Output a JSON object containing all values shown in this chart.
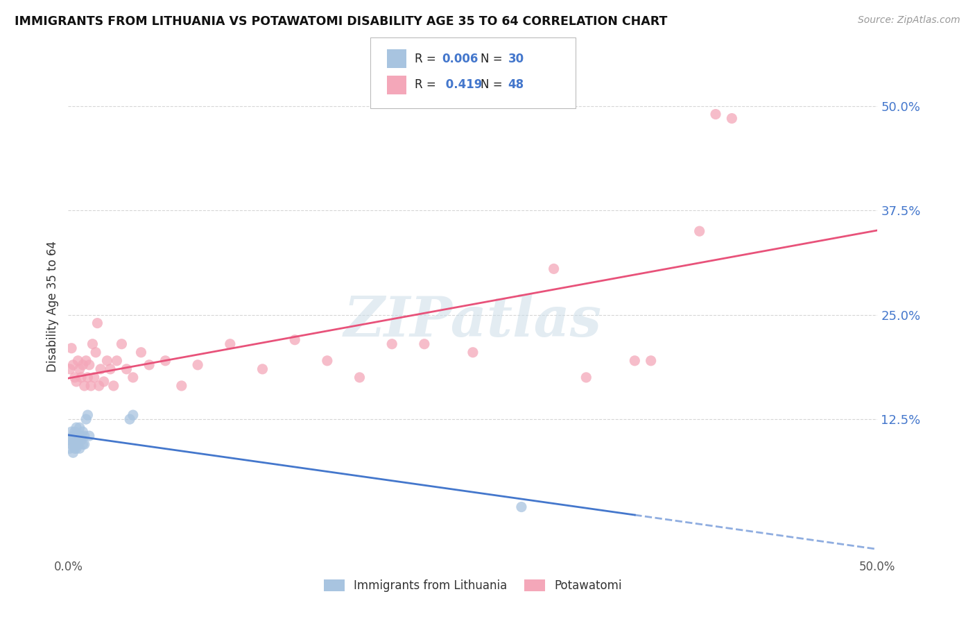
{
  "title": "IMMIGRANTS FROM LITHUANIA VS POTAWATOMI DISABILITY AGE 35 TO 64 CORRELATION CHART",
  "source": "Source: ZipAtlas.com",
  "ylabel": "Disability Age 35 to 64",
  "xlim": [
    0.0,
    0.5
  ],
  "ylim": [
    -0.04,
    0.56
  ],
  "yticks": [
    0.125,
    0.25,
    0.375,
    0.5
  ],
  "ytick_labels": [
    "12.5%",
    "25.0%",
    "37.5%",
    "50.0%"
  ],
  "xticks": [
    0.0,
    0.1,
    0.2,
    0.3,
    0.4,
    0.5
  ],
  "xtick_labels": [
    "0.0%",
    "",
    "",
    "",
    "",
    "50.0%"
  ],
  "legend_R1": "R = 0.006",
  "legend_N1": "N = 30",
  "legend_R2": "R =  0.419",
  "legend_N2": "N = 48",
  "series1_color": "#a8c4e0",
  "series2_color": "#f4a7b9",
  "line1_color": "#4477cc",
  "line2_color": "#e8527a",
  "watermark": "ZIPatlas",
  "watermark_color": "#ccdde8",
  "blue_scatter_x": [
    0.001,
    0.001,
    0.002,
    0.002,
    0.003,
    0.003,
    0.003,
    0.004,
    0.004,
    0.004,
    0.005,
    0.005,
    0.005,
    0.006,
    0.006,
    0.007,
    0.007,
    0.007,
    0.008,
    0.008,
    0.009,
    0.009,
    0.01,
    0.01,
    0.011,
    0.012,
    0.013,
    0.038,
    0.04,
    0.28
  ],
  "blue_scatter_y": [
    0.1,
    0.09,
    0.095,
    0.11,
    0.1,
    0.085,
    0.105,
    0.095,
    0.11,
    0.09,
    0.105,
    0.09,
    0.115,
    0.1,
    0.095,
    0.105,
    0.09,
    0.115,
    0.1,
    0.105,
    0.095,
    0.11,
    0.105,
    0.095,
    0.125,
    0.13,
    0.105,
    0.125,
    0.13,
    0.02
  ],
  "pink_scatter_x": [
    0.001,
    0.002,
    0.003,
    0.004,
    0.005,
    0.006,
    0.007,
    0.008,
    0.009,
    0.01,
    0.011,
    0.012,
    0.013,
    0.014,
    0.015,
    0.016,
    0.017,
    0.018,
    0.019,
    0.02,
    0.022,
    0.024,
    0.026,
    0.028,
    0.03,
    0.033,
    0.036,
    0.04,
    0.045,
    0.05,
    0.06,
    0.07,
    0.08,
    0.1,
    0.12,
    0.14,
    0.16,
    0.18,
    0.2,
    0.22,
    0.25,
    0.3,
    0.32,
    0.35,
    0.36,
    0.39,
    0.4,
    0.41
  ],
  "pink_scatter_y": [
    0.185,
    0.21,
    0.19,
    0.175,
    0.17,
    0.195,
    0.185,
    0.175,
    0.19,
    0.165,
    0.195,
    0.175,
    0.19,
    0.165,
    0.215,
    0.175,
    0.205,
    0.24,
    0.165,
    0.185,
    0.17,
    0.195,
    0.185,
    0.165,
    0.195,
    0.215,
    0.185,
    0.175,
    0.205,
    0.19,
    0.195,
    0.165,
    0.19,
    0.215,
    0.185,
    0.22,
    0.195,
    0.175,
    0.215,
    0.215,
    0.205,
    0.305,
    0.175,
    0.195,
    0.195,
    0.35,
    0.49,
    0.485
  ],
  "background_color": "#ffffff",
  "grid_color": "#cccccc",
  "legend1_label": "Immigrants from Lithuania",
  "legend2_label": "Potawatomi"
}
